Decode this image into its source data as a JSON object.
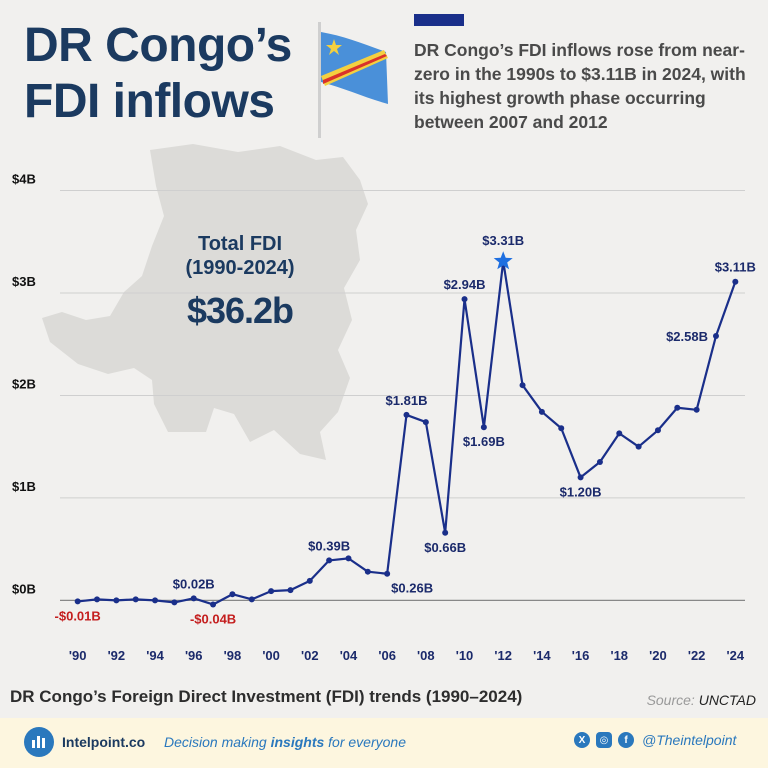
{
  "header": {
    "title_line1": "DR Congo’s",
    "title_line2": "FDI inflows",
    "subtitle": "DR Congo’s FDI inflows rose from near-zero in the 1990s to $3.11B in 2024, with its highest growth phase occurring between 2007 and 2012"
  },
  "total": {
    "label_line1": "Total FDI",
    "label_line2": "(1990-2024)",
    "value": "$36.2b"
  },
  "caption": "DR Congo’s Foreign Direct Investment (FDI) trends (1990–2024)",
  "source": {
    "label": "Source:",
    "value": "UNCTAD"
  },
  "footer": {
    "brand": "Intelpoint.co",
    "tagline_pre": "Decision making ",
    "tagline_bold": "insights",
    "tagline_post": " for everyone",
    "handle": "@Theintelpoint",
    "icons": [
      "x-icon",
      "instagram-icon",
      "facebook-icon"
    ]
  },
  "colors": {
    "title": "#1b3a60",
    "line": "#1a2f8a",
    "negative": "#c41e1e",
    "star": "#1f6fe0",
    "footer_bg": "#fdf6df"
  },
  "chart_data": {
    "type": "line",
    "x": [
      1990,
      1991,
      1992,
      1993,
      1994,
      1995,
      1996,
      1997,
      1998,
      1999,
      2000,
      2001,
      2002,
      2003,
      2004,
      2005,
      2006,
      2007,
      2008,
      2009,
      2010,
      2011,
      2012,
      2013,
      2014,
      2015,
      2016,
      2017,
      2018,
      2019,
      2020,
      2021,
      2022,
      2023,
      2024
    ],
    "series": [
      {
        "values": [
          -0.01,
          0.01,
          0.0,
          0.01,
          0.0,
          -0.02,
          0.02,
          -0.04,
          0.06,
          0.01,
          0.09,
          0.1,
          0.19,
          0.39,
          0.41,
          0.28,
          0.26,
          1.81,
          1.74,
          0.66,
          2.94,
          1.69,
          3.31,
          2.1,
          1.84,
          1.68,
          1.2,
          1.35,
          1.63,
          1.5,
          1.66,
          1.88,
          1.86,
          2.58,
          3.11
        ]
      }
    ],
    "x_tick_labels": [
      "'90",
      "'92",
      "'94",
      "'96",
      "'98",
      "'00",
      "'02",
      "'04",
      "'06",
      "'08",
      "'10",
      "'12",
      "'14",
      "'16",
      "'18",
      "'20",
      "'22",
      "'24"
    ],
    "y_tick_labels": [
      "$0B",
      "$1B",
      "$2B",
      "$3B",
      "$4B"
    ],
    "y_ticks": [
      0,
      1,
      2,
      3,
      4
    ],
    "ylim": [
      -0.25,
      4.2
    ],
    "xlim": [
      1989.5,
      2024.5
    ],
    "grid": true,
    "annotations": [
      {
        "year": 1990,
        "value": -0.01,
        "label": "-$0.01B",
        "negative": true,
        "pos": "below"
      },
      {
        "year": 1996,
        "value": 0.02,
        "label": "$0.02B",
        "pos": "above"
      },
      {
        "year": 1997,
        "value": -0.04,
        "label": "-$0.04B",
        "negative": true,
        "pos": "below"
      },
      {
        "year": 2003,
        "value": 0.39,
        "label": "$0.39B",
        "pos": "above"
      },
      {
        "year": 2006,
        "value": 0.26,
        "label": "$0.26B",
        "pos": "below-right"
      },
      {
        "year": 2007,
        "value": 1.81,
        "label": "$1.81B",
        "pos": "above"
      },
      {
        "year": 2009,
        "value": 0.66,
        "label": "$0.66B",
        "pos": "below"
      },
      {
        "year": 2010,
        "value": 2.94,
        "label": "$2.94B",
        "pos": "above"
      },
      {
        "year": 2011,
        "value": 1.69,
        "label": "$1.69B",
        "pos": "below"
      },
      {
        "year": 2012,
        "value": 3.31,
        "label": "$3.31B",
        "pos": "above",
        "peak": true
      },
      {
        "year": 2016,
        "value": 1.2,
        "label": "$1.20B",
        "pos": "below"
      },
      {
        "year": 2023,
        "value": 2.58,
        "label": "$2.58B",
        "pos": "left"
      },
      {
        "year": 2024,
        "value": 3.11,
        "label": "$3.11B",
        "pos": "above"
      }
    ]
  }
}
